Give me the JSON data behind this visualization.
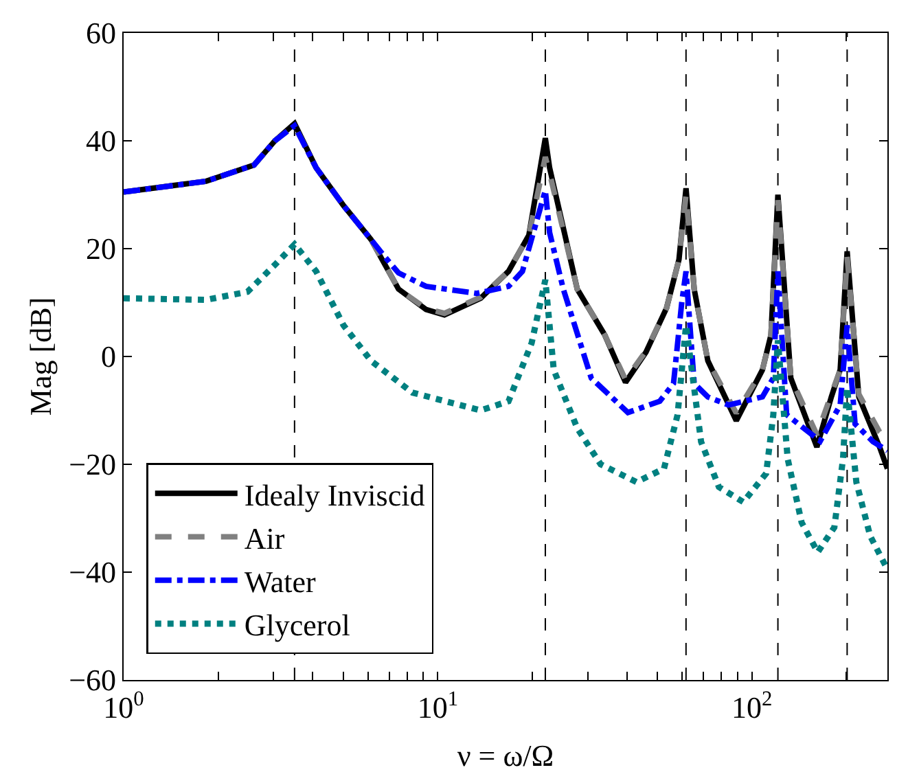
{
  "chart_data": {
    "type": "line",
    "xlabel": "ν = ω/Ω",
    "ylabel": "Mag [dB]",
    "log": "x",
    "grid": false,
    "legend": "bottom left",
    "marker": "none",
    "xlim": [
      1,
      270
    ],
    "ylim": [
      -60,
      60
    ],
    "xticks": [
      {
        "value": 1,
        "label": "10$^{0}$"
      },
      {
        "value": 2,
        "label": null
      },
      {
        "value": 3,
        "label": null
      },
      {
        "value": 4,
        "label": null
      },
      {
        "value": 5,
        "label": null
      },
      {
        "value": 6,
        "label": null
      },
      {
        "value": 7,
        "label": null
      },
      {
        "value": 8,
        "label": null
      },
      {
        "value": 9,
        "label": null
      },
      {
        "value": 10,
        "label": "10$^{1}$"
      },
      {
        "value": 20,
        "label": null
      },
      {
        "value": 30,
        "label": null
      },
      {
        "value": 40,
        "label": null
      },
      {
        "value": 50,
        "label": null
      },
      {
        "value": 60,
        "label": null
      },
      {
        "value": 70,
        "label": null
      },
      {
        "value": 80,
        "label": null
      },
      {
        "value": 90,
        "label": null
      },
      {
        "value": 100,
        "label": "10$^{2}$"
      },
      {
        "value": 200,
        "label": null
      }
    ],
    "yticks": [
      -60,
      -40,
      -20,
      0,
      20,
      40,
      60
    ],
    "ref_lines": [
      {
        "axis": "x",
        "value": 3.5,
        "color": "#000000",
        "line_style": "dashed"
      },
      {
        "axis": "x",
        "value": 22,
        "color": "#000000",
        "line_style": "dashed"
      },
      {
        "axis": "x",
        "value": 61.7,
        "color": "#000000",
        "line_style": "dashed"
      },
      {
        "axis": "x",
        "value": 121,
        "color": "#000000",
        "line_style": "dashed"
      },
      {
        "axis": "x",
        "value": 201,
        "color": "#000000",
        "line_style": "dashed"
      }
    ],
    "series": [
      {
        "name": "Idealy Inviscid",
        "color": "#000000",
        "line_style": "solid",
        "x": [
          1,
          1.83,
          2.6,
          3.03,
          3.5,
          4.1,
          5.01,
          6.13,
          7.5,
          9.18,
          10.5,
          13.7,
          16.8,
          19.5,
          22,
          22.7,
          27.8,
          34,
          39.6,
          46,
          53.5,
          58.6,
          61.7,
          65.5,
          72.4,
          89.2,
          108,
          115,
          121,
          133,
          161,
          179,
          191,
          201,
          219,
          255,
          270
        ],
        "values": [
          30.5,
          32.5,
          35.5,
          40,
          43.2,
          35,
          28,
          21.7,
          12.5,
          8.7,
          7.7,
          10.8,
          15.8,
          22.5,
          40.5,
          35,
          12.5,
          4,
          -4.8,
          0.8,
          9,
          18,
          31.2,
          12.5,
          -0.8,
          -11.9,
          -2.5,
          4,
          30,
          -4,
          -16.8,
          -7.5,
          -2.5,
          19.5,
          -7.5,
          -16.8,
          -20.8
        ]
      },
      {
        "name": "Air",
        "color": "#808080",
        "line_style": "dashed",
        "x": [
          1,
          1.83,
          2.6,
          3.03,
          3.5,
          4.1,
          5.01,
          6.13,
          7.5,
          9.18,
          10.5,
          13.7,
          16.8,
          19.5,
          22,
          22.7,
          27.8,
          34,
          39.6,
          46,
          53.5,
          58.6,
          61.7,
          65.5,
          72.4,
          89.2,
          108,
          115,
          121,
          133,
          161,
          179,
          191,
          201,
          219,
          255,
          270
        ],
        "values": [
          30.5,
          32.5,
          35.5,
          40,
          42.8,
          35,
          28,
          21.7,
          12.5,
          8.9,
          8,
          11,
          15.8,
          22.5,
          37,
          34,
          12.5,
          4,
          -4.3,
          1,
          9,
          18,
          30,
          12.5,
          -0.8,
          -10.5,
          -2.5,
          4,
          29,
          -4,
          -14.5,
          -7,
          -2.5,
          18.5,
          -7,
          -14,
          -15.5
        ]
      },
      {
        "name": "Water",
        "color": "#0000ff",
        "line_style": "dashdot",
        "x": [
          1,
          1.83,
          2.6,
          3.03,
          3.5,
          4.1,
          5.01,
          6.13,
          6.78,
          7.5,
          9.18,
          13.3,
          16.8,
          18.6,
          22,
          22.7,
          25.1,
          30.8,
          40.3,
          50.9,
          56.3,
          59.8,
          61.7,
          65.5,
          72.4,
          84.3,
          108,
          117,
          121,
          129,
          165,
          191,
          201,
          213,
          243,
          270
        ],
        "values": [
          30.5,
          32.5,
          35.5,
          40,
          42.8,
          35,
          28,
          21.7,
          18.5,
          15.5,
          13,
          11.7,
          13,
          15.8,
          30.8,
          23,
          12.5,
          -4,
          -10.4,
          -8.3,
          -5,
          10,
          15.8,
          -5,
          -7.5,
          -9,
          -7.5,
          -4,
          15.8,
          -10.8,
          -15.7,
          -9,
          5.8,
          -12.5,
          -15.8,
          -17.5
        ]
      },
      {
        "name": "Glycerol",
        "color": "#008080",
        "line_style": "dotted",
        "x": [
          1,
          1.83,
          2.48,
          3.03,
          3.5,
          4.1,
          5.01,
          6.13,
          8.3,
          13.7,
          16.8,
          19.9,
          22,
          23.4,
          27.8,
          33,
          42.9,
          52.5,
          58,
          61.7,
          68.9,
          78.5,
          93.9,
          111,
          117,
          121,
          130,
          144,
          162,
          183,
          195,
          201,
          215,
          238,
          270
        ],
        "values": [
          10.8,
          10.5,
          12,
          17,
          20.8,
          15.8,
          5.8,
          -0.8,
          -6.7,
          -10,
          -8.3,
          2.5,
          14.2,
          -2.5,
          -13.3,
          -20,
          -23.3,
          -20.8,
          -10.8,
          5.8,
          -15.8,
          -24.2,
          -27,
          -21.7,
          -10.8,
          3,
          -19,
          -30.8,
          -36.3,
          -31.7,
          -19,
          -5.8,
          -23.3,
          -33.3,
          -39.5
        ]
      }
    ]
  }
}
